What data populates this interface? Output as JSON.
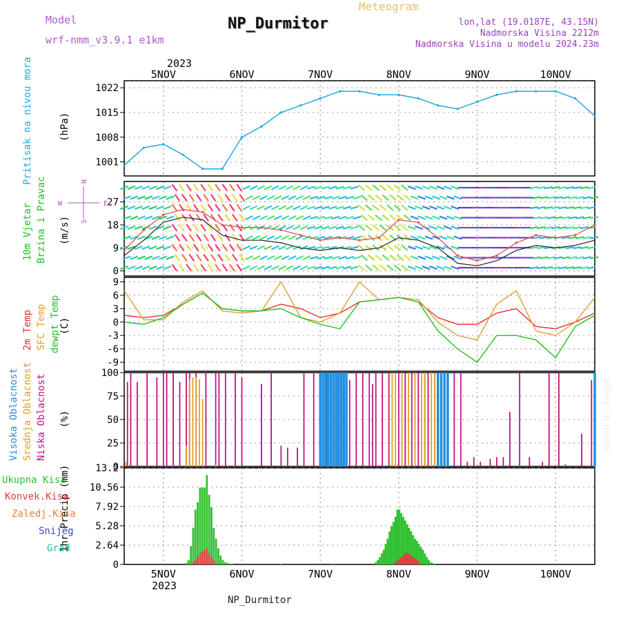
{
  "header": {
    "model_label": "Model",
    "model_name": "wrf-nmm_v3.9.1  e1km",
    "title": "NP_Durmitor",
    "meteogram_label": "Meteogram",
    "location": "lon,lat (19.0187E, 43.15N)",
    "elevation": "Nadmorska Visina 2212m",
    "model_elevation": "Nadmorska Visina u modelu 2024.23m"
  },
  "footer": {
    "station": "NP_Durmitor",
    "watermark": "made by Angel"
  },
  "colors": {
    "pressure": "#20a8e0",
    "wind_speed": "#222222",
    "wind_gust": "#e05050",
    "temp_2m": "#e83030",
    "temp_sfc": "#e0a030",
    "dewpt": "#20c020",
    "cloud_high": "#2090e0",
    "cloud_mid": "#e0a020",
    "cloud_low": "#c01080",
    "precip_total": "#30c030",
    "precip_conv": "#e04040",
    "precip_frz": "#f08030",
    "snow": "#4040e0",
    "graupel": "#20c0a0"
  },
  "chart_data": [
    {
      "panel": "pressure",
      "type": "line",
      "ylabel": "(hPa)",
      "side_labels": [
        "Pritisak na nivou mora"
      ],
      "yticks": [
        "1001",
        "1008",
        "1015",
        "1022"
      ],
      "ylim": [
        997,
        1024
      ],
      "top_year": "2023",
      "top_days": [
        "5NOV",
        "6NOV",
        "7NOV",
        "8NOV",
        "9NOV",
        "10NOV"
      ],
      "x_hours": [
        0,
        6,
        12,
        18,
        24,
        30,
        36,
        42,
        48,
        54,
        60,
        66,
        72,
        78,
        84,
        90,
        96,
        102,
        108,
        114,
        120,
        126,
        132,
        138,
        144
      ],
      "values": [
        1000,
        1005,
        1006,
        1003,
        999,
        999,
        1008,
        1011,
        1015,
        1017,
        1019,
        1021,
        1021,
        1020,
        1020,
        1019,
        1017,
        1016,
        1018,
        1020,
        1021,
        1021,
        1021,
        1019,
        1014
      ]
    },
    {
      "panel": "wind",
      "type": "line",
      "ylabel": "(m/s)",
      "side_labels": [
        "10m Vjetar",
        "Brzina i Pravac"
      ],
      "compass": {
        "n": "N",
        "s": "S",
        "w": "W",
        "e": "E"
      },
      "yticks": [
        "0",
        "9",
        "18",
        "27"
      ],
      "ylim": [
        -2,
        35
      ],
      "x_hours": [
        0,
        6,
        12,
        18,
        24,
        30,
        36,
        42,
        48,
        54,
        60,
        66,
        72,
        78,
        84,
        90,
        96,
        102,
        108,
        114,
        120,
        126,
        132,
        138,
        144
      ],
      "series": [
        {
          "name": "speed",
          "values": [
            6,
            12,
            19,
            21,
            20,
            14,
            12,
            12,
            11,
            9,
            8,
            9,
            8,
            9,
            13,
            12,
            9,
            3,
            2,
            4,
            8,
            10,
            9,
            10,
            12
          ]
        },
        {
          "name": "gust",
          "values": [
            8,
            16,
            22,
            24,
            23,
            18,
            17,
            17,
            16,
            14,
            12,
            13,
            12,
            13,
            20,
            19,
            13,
            6,
            4,
            6,
            11,
            14,
            13,
            14,
            18
          ]
        }
      ]
    },
    {
      "panel": "temperature",
      "type": "line",
      "ylabel": "(C)",
      "side_labels": [
        "2m Temp",
        "SFC Temp",
        "dewpt Temp"
      ],
      "yticks": [
        "-9",
        "-6",
        "-3",
        "0",
        "3",
        "6",
        "9"
      ],
      "ylim": [
        -11,
        10
      ],
      "x_hours": [
        0,
        6,
        12,
        18,
        24,
        30,
        36,
        42,
        48,
        54,
        60,
        66,
        72,
        78,
        84,
        90,
        96,
        102,
        108,
        114,
        120,
        126,
        132,
        138,
        144
      ],
      "series": [
        {
          "name": "2m Temp",
          "values": [
            1.5,
            1,
            1.5,
            4,
            6.5,
            3,
            2.5,
            2.5,
            4,
            3,
            1,
            2,
            4.5,
            5,
            5.5,
            4.5,
            1,
            -0.5,
            -0.5,
            2,
            3,
            -1,
            -1.5,
            0,
            2
          ]
        },
        {
          "name": "SFC Temp",
          "values": [
            7,
            0.5,
            0.5,
            4.5,
            7,
            2.5,
            2,
            2.5,
            9,
            1,
            0,
            2,
            9,
            5,
            5.5,
            5,
            0,
            -3,
            -4,
            4,
            7,
            -2,
            -3,
            0,
            5.5
          ]
        },
        {
          "name": "dewpt Temp",
          "values": [
            0,
            -0.5,
            1,
            4,
            6.5,
            3,
            2.5,
            2.5,
            3,
            1,
            -0.5,
            -1.5,
            4.5,
            5,
            5.5,
            4.5,
            -2,
            -6,
            -9,
            -3,
            -3,
            -4,
            -8,
            -1,
            1.5
          ]
        }
      ]
    },
    {
      "panel": "clouds",
      "type": "bar",
      "ylabel": "(%)",
      "side_labels": [
        "Visoka Oblacnost",
        "Srednja Oblacnost",
        "Niska Oblacnost"
      ],
      "yticks": [
        "0",
        "25",
        "50",
        "75",
        "100"
      ],
      "ylim": [
        0,
        100
      ],
      "series": [
        {
          "name": "Visoka Oblacnost",
          "x_hours": [
            60,
            60.8,
            61.6,
            62.4,
            63.2,
            64,
            64.8,
            65.6,
            66.4,
            67.2,
            68,
            96,
            97,
            98,
            99,
            144
          ],
          "values": [
            100,
            100,
            100,
            100,
            100,
            100,
            100,
            100,
            100,
            100,
            100,
            100,
            100,
            100,
            100,
            100
          ]
        },
        {
          "name": "Srednja Oblacnost",
          "x_hours": [
            0.5,
            19,
            20,
            21,
            22,
            23,
            24,
            28,
            82,
            83,
            85,
            87,
            89,
            91,
            92,
            94,
            95,
            96
          ],
          "values": [
            5,
            22,
            93,
            95,
            95,
            93,
            72,
            2,
            100,
            100,
            100,
            100,
            100,
            100,
            100,
            100,
            100,
            100
          ]
        },
        {
          "name": "Niska Oblacnost",
          "x_hours": [
            1,
            2,
            4,
            7,
            10,
            12,
            13,
            15,
            17,
            19,
            20,
            22,
            25,
            28,
            29,
            31,
            34,
            36,
            42,
            45,
            48,
            50,
            53,
            55,
            58,
            62,
            65,
            67,
            69,
            71,
            73,
            75,
            76,
            77,
            79,
            81,
            84,
            86,
            88,
            90,
            92,
            93,
            95,
            97,
            99,
            101,
            103,
            105,
            107,
            109,
            112,
            114,
            116,
            118,
            121,
            124,
            128,
            130,
            133,
            135,
            140,
            143
          ],
          "values": [
            90,
            100,
            90,
            100,
            95,
            100,
            100,
            100,
            90,
            100,
            100,
            100,
            100,
            100,
            100,
            100,
            100,
            95,
            88,
            100,
            22,
            20,
            20,
            100,
            100,
            100,
            100,
            100,
            92,
            100,
            100,
            100,
            88,
            100,
            100,
            100,
            100,
            100,
            100,
            100,
            100,
            100,
            100,
            100,
            100,
            100,
            100,
            5,
            10,
            5,
            8,
            10,
            10,
            58,
            100,
            10,
            5,
            100,
            100,
            2,
            35,
            92
          ]
        }
      ]
    },
    {
      "panel": "precip",
      "type": "bar",
      "ylabel": "1hr Precip (mm)",
      "legend": [
        "Ukupna Kisa",
        "Konvek.Kisa",
        "Zaledj.Kisa",
        "Snijeg",
        "Grad"
      ],
      "yticks": [
        "0",
        "2.64",
        "5.28",
        "7.92",
        "10.56",
        "13.2"
      ],
      "ylim": [
        0,
        13.2
      ],
      "bottom_days": [
        "5NOV",
        "6NOV",
        "7NOV",
        "8NOV",
        "9NOV",
        "10NOV"
      ],
      "bottom_year": "2023",
      "total": {
        "x_hours": [
          19,
          19.7,
          20.4,
          21.1,
          21.8,
          22.5,
          23.2,
          23.9,
          24.6,
          25.3,
          26,
          26.7,
          27.4,
          28.1,
          28.8,
          29.5,
          30.2,
          30.9,
          31.6,
          32.3,
          33,
          48,
          64,
          77,
          77.6,
          78.2,
          78.8,
          79.4,
          80,
          80.6,
          81.2,
          81.8,
          82.4,
          83,
          83.6,
          84.2,
          84.8,
          85.4,
          86,
          86.6,
          87.2,
          87.8,
          88.4,
          89,
          89.6,
          90.2,
          90.8,
          91.4,
          92,
          92.6,
          93.2,
          93.8,
          94.4,
          95
        ],
        "values": [
          0.2,
          0.6,
          2.5,
          5,
          7.5,
          8.5,
          10.5,
          10.5,
          10.5,
          12.2,
          9.5,
          7.8,
          5,
          3.5,
          2.2,
          1.2,
          0.6,
          0.3,
          0.2,
          0.1,
          0.1,
          0.1,
          0.1,
          0.3,
          0.6,
          1,
          1.5,
          2,
          2.8,
          3.5,
          4.5,
          5.2,
          5.8,
          6.5,
          7.5,
          7.5,
          7,
          6.5,
          6,
          5.5,
          5,
          4.5,
          4,
          3.5,
          3.2,
          2.8,
          2.4,
          2,
          1.5,
          1,
          0.6,
          0.3,
          0.2,
          0.1
        ]
      },
      "convective": {
        "x_hours": [
          21.1,
          21.8,
          22.5,
          23.2,
          23.9,
          24.6,
          25.3,
          26,
          26.7,
          27.4,
          83,
          83.6,
          84.2,
          84.8,
          85.4,
          86,
          86.6,
          87.2,
          87.8,
          88.4,
          89,
          89.6,
          90.2
        ],
        "values": [
          0.3,
          0.6,
          1,
          1.5,
          1.8,
          2,
          2.2,
          1.5,
          1,
          0.5,
          0.3,
          0.5,
          0.8,
          1,
          1.2,
          1.5,
          1.6,
          1.4,
          1.2,
          1,
          0.8,
          0.6,
          0.4
        ]
      }
    }
  ]
}
